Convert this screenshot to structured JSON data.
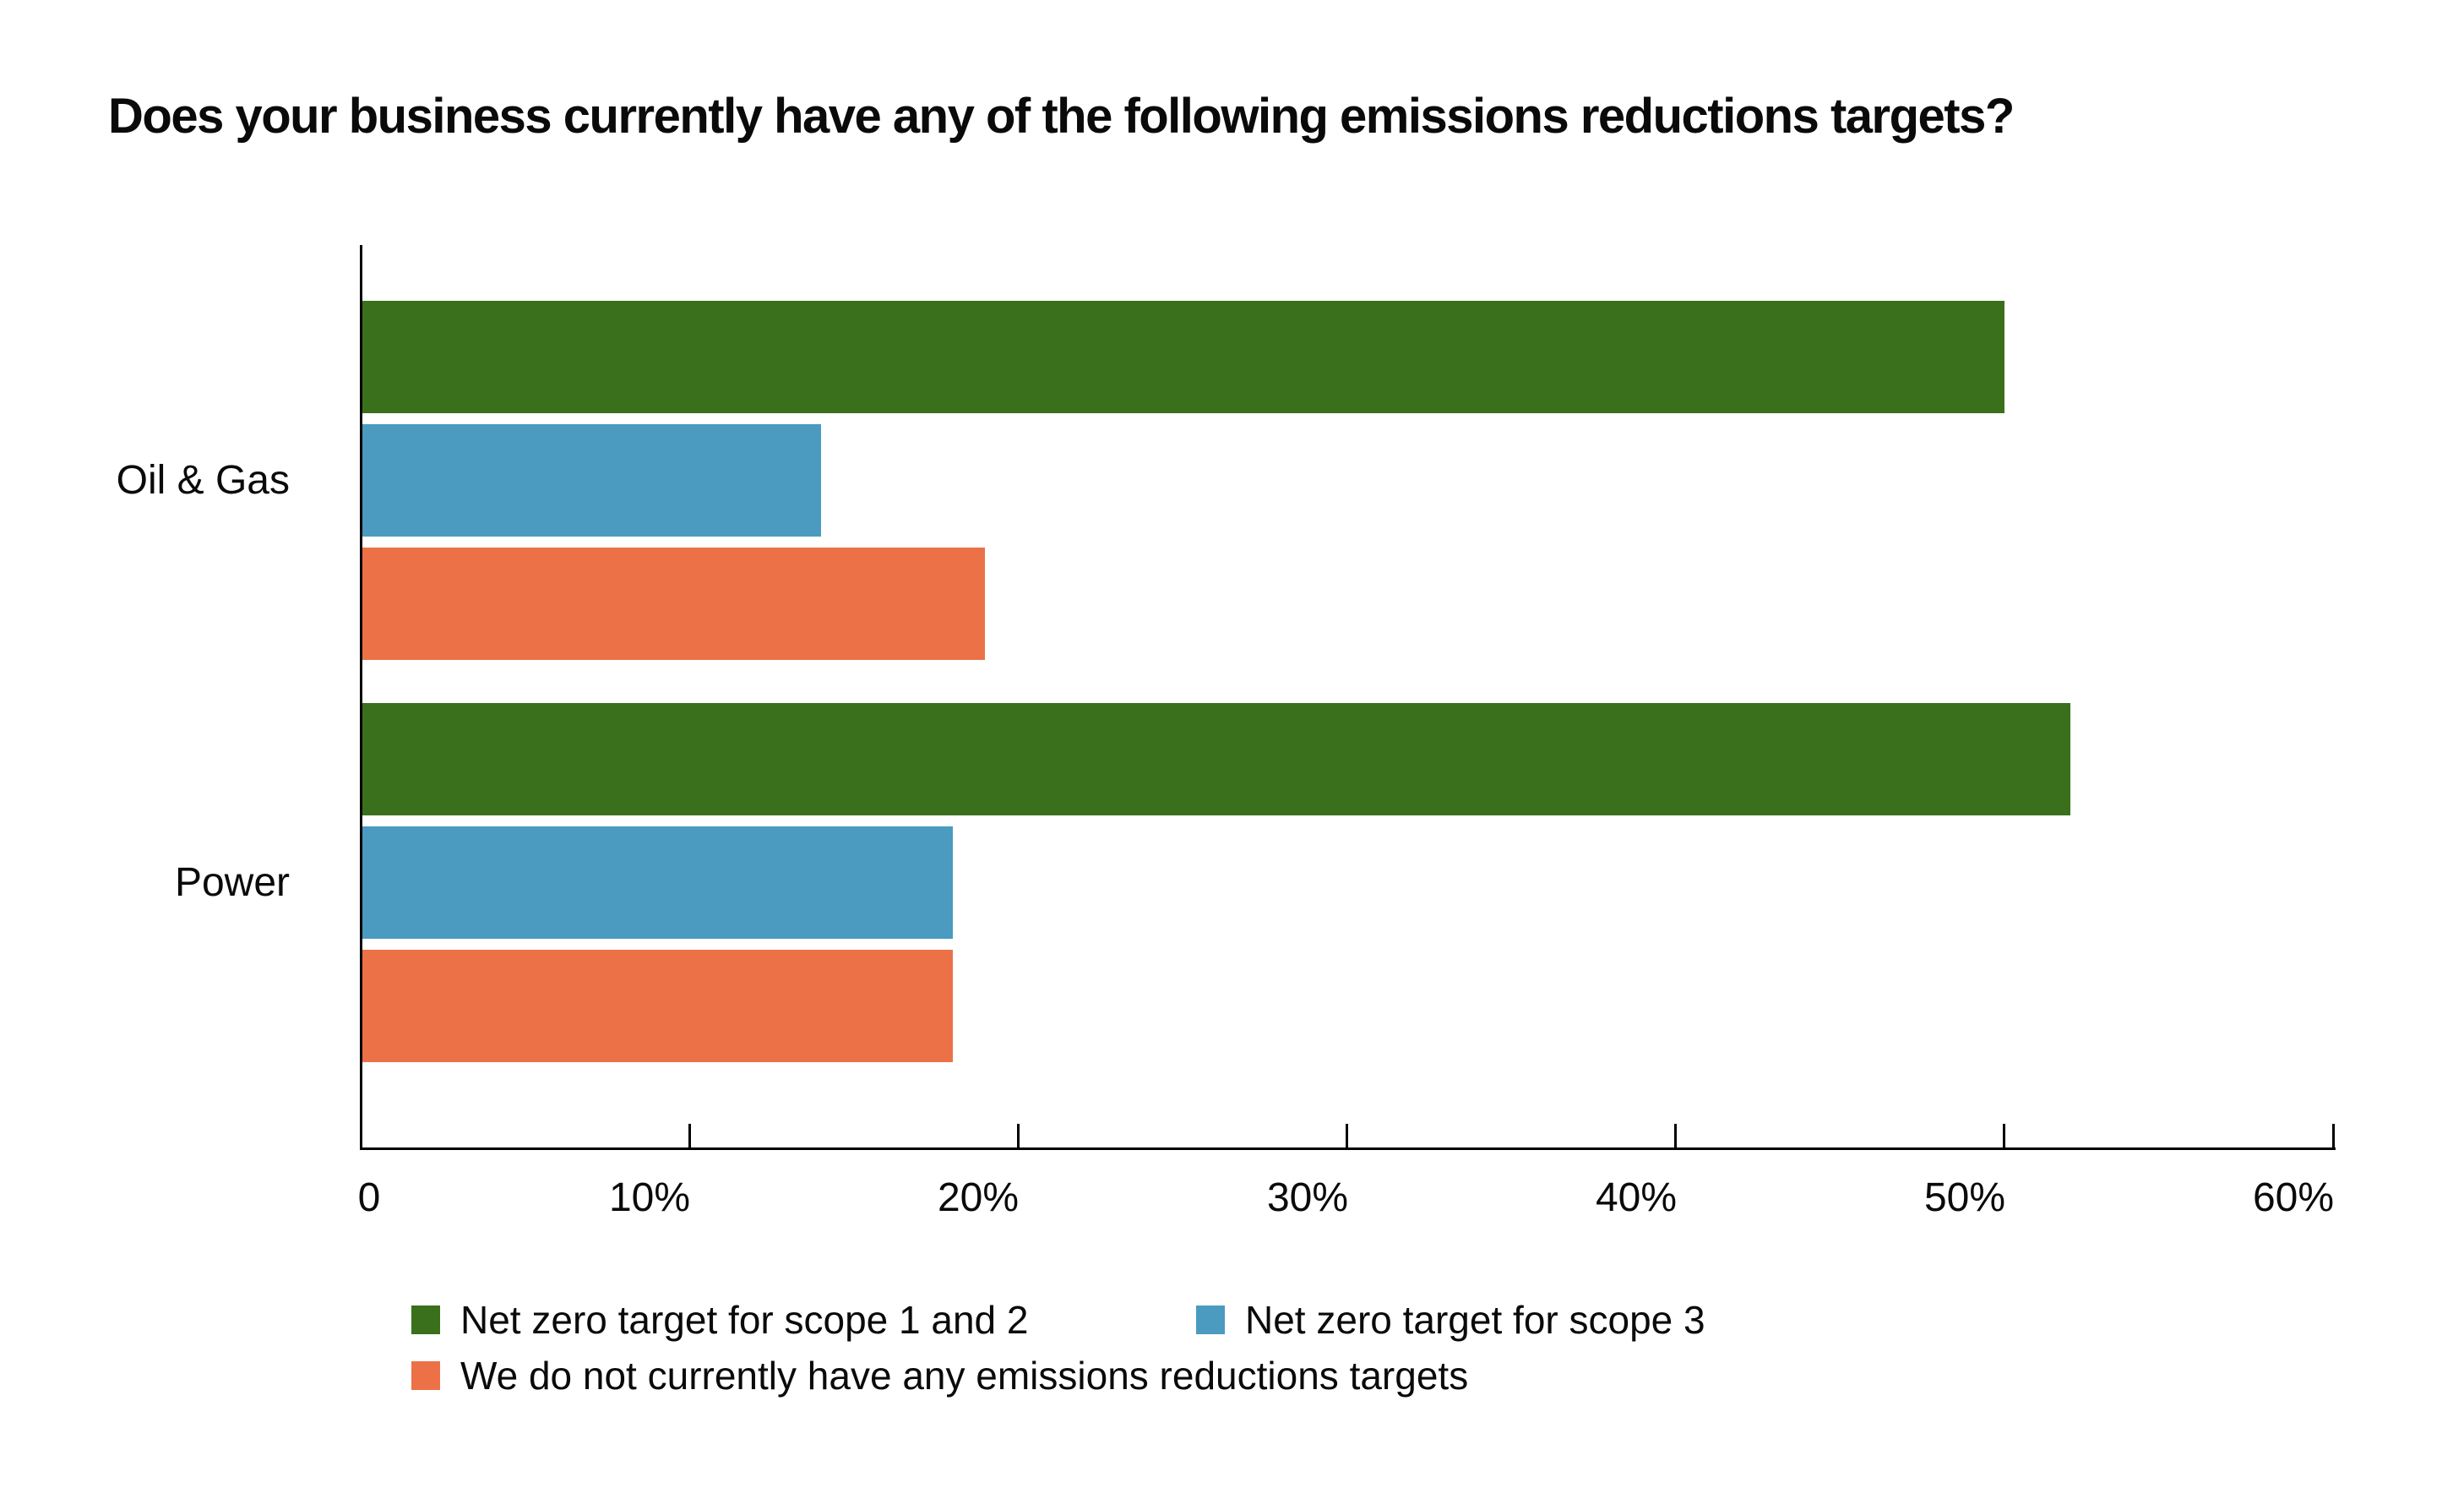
{
  "title": "Does your business currently have any of the following emissions reductions targets?",
  "chart_data": {
    "type": "bar",
    "orientation": "horizontal",
    "title": "Does your business currently have any of the following emissions reductions targets?",
    "categories": [
      "Oil & Gas",
      "Power"
    ],
    "series": [
      {
        "name": "Net zero target for scope 1 and 2",
        "color": "#3A701B",
        "values": [
          50,
          52
        ]
      },
      {
        "name": "Net zero target for scope 3",
        "color": "#4A9BBF",
        "values": [
          14,
          18
        ]
      },
      {
        "name": "We do not currently have any emissions reductions targets",
        "color": "#EC7147",
        "values": [
          19,
          18
        ]
      }
    ],
    "xlabel": "",
    "ylabel": "",
    "x_ticks": [
      "0",
      "10%",
      "20%",
      "30%",
      "40%",
      "50%",
      "60%"
    ],
    "x_tick_values": [
      0,
      10,
      20,
      30,
      40,
      50,
      60
    ],
    "xlim": [
      0,
      60
    ],
    "unit": "percent",
    "grid": false,
    "legend_position": "bottom",
    "axis_color": "#000000",
    "text_color": "#0A0A0A",
    "background_color": "#FFFFFF"
  }
}
